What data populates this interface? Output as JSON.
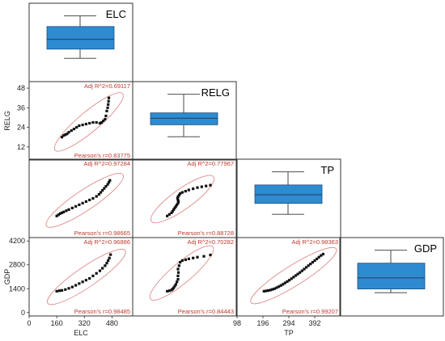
{
  "chart_data": {
    "type": "scatter-matrix",
    "variables": [
      "ELC",
      "RELG",
      "TP",
      "GDP"
    ],
    "axes": {
      "ELC": {
        "ticks": [
          "0",
          "160",
          "320",
          "480"
        ],
        "range": [
          0,
          600
        ],
        "label": "ELC"
      },
      "RELG": {
        "ticks": [
          "12",
          "24",
          "36",
          "48"
        ],
        "range": [
          4,
          52
        ],
        "label": "RELG"
      },
      "TP": {
        "ticks": [
          "98",
          "196",
          "294",
          "392"
        ],
        "range": [
          98,
          490
        ],
        "label": "TP"
      },
      "GDP": {
        "ticks": [
          "0",
          "1400",
          "2800",
          "4200"
        ],
        "range": [
          -200,
          4400
        ],
        "label": "GDP"
      }
    },
    "boxplots": [
      {
        "variable": "ELC",
        "min": 170,
        "q1": 235,
        "median": 305,
        "q3": 395,
        "max": 470
      },
      {
        "variable": "RELG",
        "min": 18,
        "q1": 22.5,
        "median": 25,
        "q3": 27,
        "max": 34
      },
      {
        "variable": "TP",
        "min": 200,
        "q1": 250,
        "median": 290,
        "q3": 335,
        "max": 395
      },
      {
        "variable": "GDP",
        "min": 1200,
        "q1": 1400,
        "median": 2000,
        "q3": 2800,
        "max": 3500
      }
    ],
    "pairs": [
      {
        "x": "ELC",
        "y": "RELG",
        "adj_r2": "Adj R^2=0.69117",
        "pearson": "Pearson's r=0.83775",
        "points": [
          [
            190,
            18
          ],
          [
            200,
            19
          ],
          [
            210,
            19.5
          ],
          [
            220,
            20
          ],
          [
            230,
            21
          ],
          [
            245,
            22
          ],
          [
            260,
            23
          ],
          [
            275,
            24
          ],
          [
            290,
            25
          ],
          [
            310,
            25.5
          ],
          [
            330,
            26
          ],
          [
            350,
            26.5
          ],
          [
            370,
            27
          ],
          [
            390,
            27
          ],
          [
            410,
            26.5
          ],
          [
            420,
            27
          ],
          [
            430,
            28
          ],
          [
            440,
            29
          ],
          [
            445,
            31
          ],
          [
            450,
            34
          ],
          [
            455,
            36
          ],
          [
            458,
            38
          ],
          [
            460,
            40
          ],
          [
            462,
            42
          ]
        ]
      },
      {
        "x": "ELC",
        "y": "TP",
        "adj_r2": "Adj R^2=0.97284",
        "pearson": "Pearson's r=0.98665",
        "points": [
          [
            160,
            206
          ],
          [
            170,
            212
          ],
          [
            180,
            218
          ],
          [
            190,
            222
          ],
          [
            200,
            226
          ],
          [
            215,
            232
          ],
          [
            230,
            238
          ],
          [
            250,
            246
          ],
          [
            270,
            254
          ],
          [
            290,
            262
          ],
          [
            310,
            270
          ],
          [
            330,
            278
          ],
          [
            350,
            286
          ],
          [
            370,
            294
          ],
          [
            390,
            304
          ],
          [
            405,
            314
          ],
          [
            415,
            324
          ],
          [
            425,
            334
          ],
          [
            435,
            344
          ],
          [
            445,
            354
          ],
          [
            455,
            364
          ],
          [
            462,
            374
          ],
          [
            468,
            384
          ]
        ]
      },
      {
        "x": "ELC",
        "y": "GDP",
        "adj_r2": "Adj R^2=0.96886",
        "pearson": "Pearson's r=0.98485",
        "points": [
          [
            160,
            1250
          ],
          [
            175,
            1280
          ],
          [
            190,
            1300
          ],
          [
            210,
            1350
          ],
          [
            230,
            1420
          ],
          [
            250,
            1500
          ],
          [
            270,
            1600
          ],
          [
            290,
            1700
          ],
          [
            310,
            1800
          ],
          [
            330,
            1900
          ],
          [
            350,
            2000
          ],
          [
            370,
            2150
          ],
          [
            390,
            2300
          ],
          [
            410,
            2450
          ],
          [
            425,
            2600
          ],
          [
            440,
            2750
          ],
          [
            450,
            2900
          ],
          [
            458,
            3050
          ],
          [
            465,
            3200
          ],
          [
            472,
            3400
          ]
        ]
      },
      {
        "x": "RELG",
        "y": "TP",
        "adj_r2": "Adj R^2=0.77967",
        "pearson": "Pearson's r=0.88728",
        "points": [
          [
            20,
            206
          ],
          [
            21,
            214
          ],
          [
            22,
            222
          ],
          [
            22.5,
            230
          ],
          [
            23,
            238
          ],
          [
            23.5,
            246
          ],
          [
            24,
            254
          ],
          [
            24.5,
            262
          ],
          [
            25,
            270
          ],
          [
            25.2,
            278
          ],
          [
            25,
            286
          ],
          [
            24.8,
            294
          ],
          [
            25,
            302
          ],
          [
            25.5,
            310
          ],
          [
            26,
            318
          ],
          [
            27,
            324
          ],
          [
            28.5,
            330
          ],
          [
            30,
            336
          ],
          [
            32,
            342
          ],
          [
            34,
            348
          ],
          [
            36,
            352
          ],
          [
            38,
            356
          ],
          [
            40,
            360
          ]
        ]
      },
      {
        "x": "RELG",
        "y": "GDP",
        "adj_r2": "Adj R^2=0.70282",
        "pearson": "Pearson's r=0.84443",
        "points": [
          [
            20,
            1250
          ],
          [
            21,
            1280
          ],
          [
            22,
            1320
          ],
          [
            22.5,
            1380
          ],
          [
            23,
            1450
          ],
          [
            23.5,
            1550
          ],
          [
            24,
            1650
          ],
          [
            24.5,
            1800
          ],
          [
            25,
            1950
          ],
          [
            25,
            2150
          ],
          [
            25.2,
            2350
          ],
          [
            25,
            2550
          ],
          [
            25.5,
            2750
          ],
          [
            26,
            2950
          ],
          [
            27,
            3050
          ],
          [
            28.5,
            3100
          ],
          [
            30,
            3150
          ],
          [
            32,
            3200
          ],
          [
            34,
            3250
          ],
          [
            37,
            3300
          ],
          [
            40,
            3380
          ]
        ]
      },
      {
        "x": "TP",
        "y": "GDP",
        "adj_r2": "Adj R^2=0.98363",
        "pearson": "Pearson's r=0.99207",
        "points": [
          [
            200,
            1250
          ],
          [
            208,
            1270
          ],
          [
            216,
            1290
          ],
          [
            224,
            1320
          ],
          [
            232,
            1360
          ],
          [
            240,
            1400
          ],
          [
            248,
            1460
          ],
          [
            256,
            1520
          ],
          [
            264,
            1590
          ],
          [
            272,
            1660
          ],
          [
            280,
            1740
          ],
          [
            288,
            1820
          ],
          [
            296,
            1900
          ],
          [
            304,
            1990
          ],
          [
            312,
            2080
          ],
          [
            320,
            2170
          ],
          [
            328,
            2260
          ],
          [
            336,
            2350
          ],
          [
            344,
            2450
          ],
          [
            352,
            2550
          ],
          [
            360,
            2650
          ],
          [
            368,
            2750
          ],
          [
            376,
            2850
          ],
          [
            384,
            2950
          ],
          [
            392,
            3050
          ],
          [
            400,
            3150
          ],
          [
            408,
            3250
          ],
          [
            416,
            3350
          ],
          [
            424,
            3430
          ]
        ]
      }
    ]
  }
}
